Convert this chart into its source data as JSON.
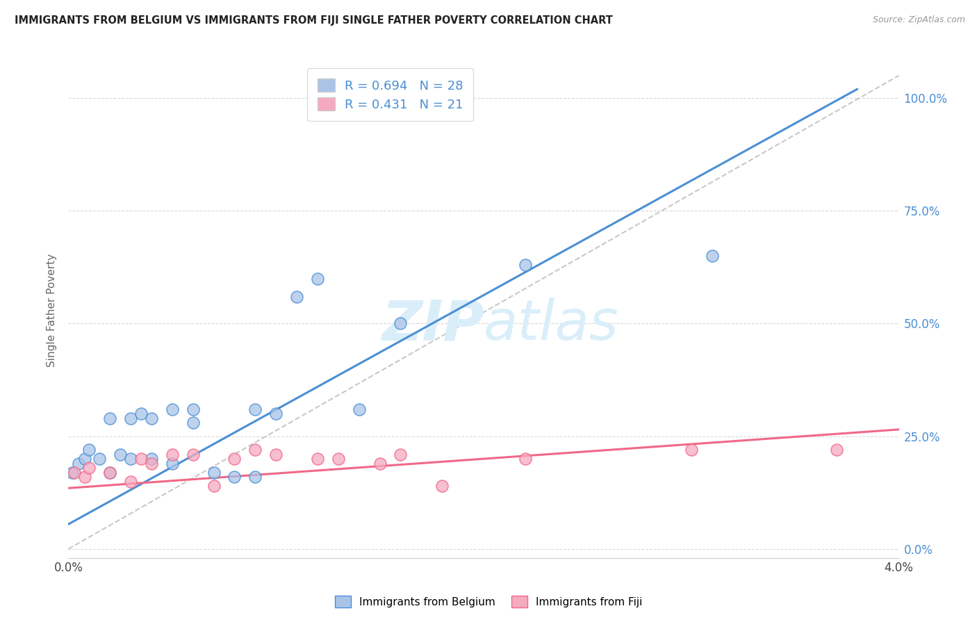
{
  "title": "IMMIGRANTS FROM BELGIUM VS IMMIGRANTS FROM FIJI SINGLE FATHER POVERTY CORRELATION CHART",
  "source": "Source: ZipAtlas.com",
  "ylabel": "Single Father Poverty",
  "legend_belgium": "Immigrants from Belgium",
  "legend_fiji": "Immigrants from Fiji",
  "R_belgium": 0.694,
  "N_belgium": 28,
  "R_fiji": 0.431,
  "N_fiji": 21,
  "color_belgium": "#aac4e8",
  "color_fiji": "#f5aac0",
  "line_color_belgium": "#4a8fd4",
  "line_color_fiji": "#f06888",
  "diag_line_color": "#c8c8c8",
  "background_color": "#ffffff",
  "watermark_color": "#daeefa",
  "xlim": [
    0.0,
    0.04
  ],
  "ylim": [
    -0.02,
    1.08
  ],
  "ytick_values": [
    0.0,
    0.25,
    0.5,
    0.75,
    1.0
  ],
  "ytick_labels": [
    "0.0%",
    "25.0%",
    "50.0%",
    "75.0%",
    "100.0%"
  ],
  "belgium_scatter_x": [
    0.0002,
    0.0005,
    0.0008,
    0.001,
    0.0015,
    0.002,
    0.002,
    0.0025,
    0.003,
    0.003,
    0.0035,
    0.004,
    0.004,
    0.005,
    0.005,
    0.006,
    0.006,
    0.007,
    0.008,
    0.009,
    0.009,
    0.01,
    0.011,
    0.012,
    0.014,
    0.016,
    0.022,
    0.031
  ],
  "belgium_scatter_y": [
    0.17,
    0.19,
    0.2,
    0.22,
    0.2,
    0.17,
    0.29,
    0.21,
    0.2,
    0.29,
    0.3,
    0.2,
    0.29,
    0.19,
    0.31,
    0.28,
    0.31,
    0.17,
    0.16,
    0.31,
    0.16,
    0.3,
    0.56,
    0.6,
    0.31,
    0.5,
    0.63,
    0.65
  ],
  "fiji_scatter_x": [
    0.0003,
    0.0008,
    0.001,
    0.002,
    0.003,
    0.0035,
    0.004,
    0.005,
    0.006,
    0.007,
    0.008,
    0.009,
    0.01,
    0.012,
    0.013,
    0.015,
    0.016,
    0.018,
    0.022,
    0.03,
    0.037
  ],
  "fiji_scatter_y": [
    0.17,
    0.16,
    0.18,
    0.17,
    0.15,
    0.2,
    0.19,
    0.21,
    0.21,
    0.14,
    0.2,
    0.22,
    0.21,
    0.2,
    0.2,
    0.19,
    0.21,
    0.14,
    0.2,
    0.22,
    0.22
  ],
  "belgium_line_x": [
    0.0,
    0.038
  ],
  "belgium_line_y": [
    0.055,
    1.02
  ],
  "fiji_line_x": [
    0.0,
    0.04
  ],
  "fiji_line_y": [
    0.135,
    0.265
  ],
  "diag_line_x": [
    0.0,
    0.04
  ],
  "diag_line_y": [
    0.0,
    1.05
  ]
}
